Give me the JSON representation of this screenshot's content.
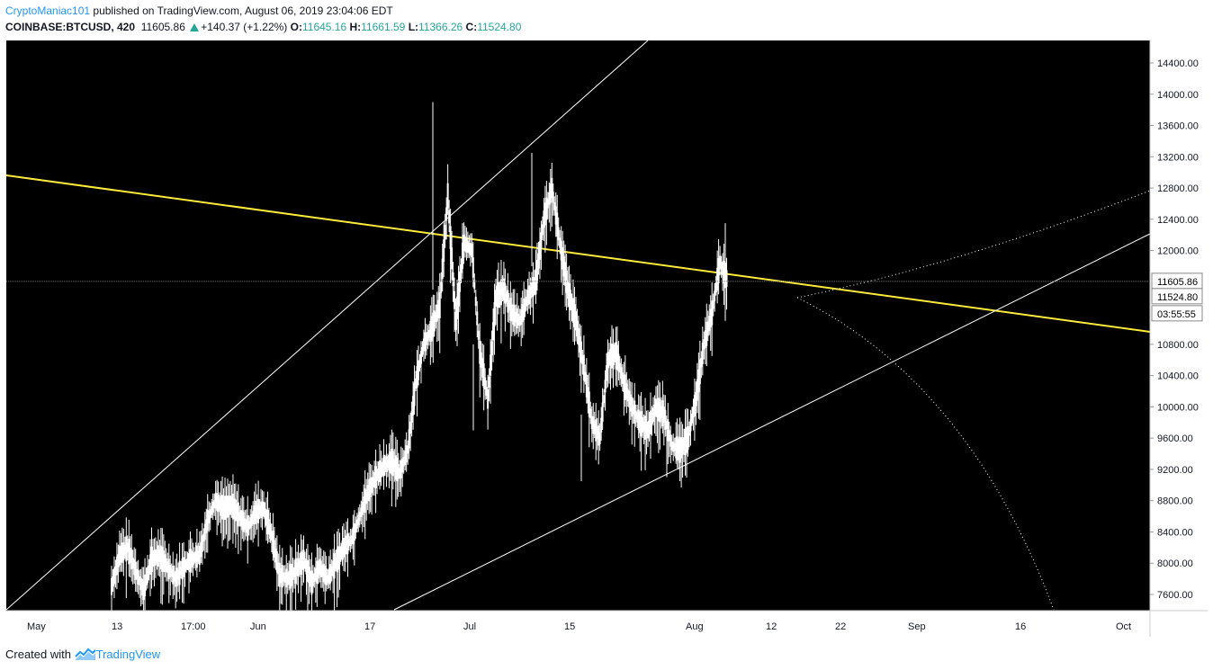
{
  "header": {
    "author": "CryptoManiac101",
    "published_text": " published on TradingView.com, August 06, 2019 23:04:06 EDT",
    "symbol": "COINBASE:BTCUSD, 420",
    "last": "11605.86",
    "change": "+140.37 (+1.22%)",
    "o_label": "O:",
    "o_value": "11645.16",
    "h_label": "H:",
    "h_value": "11661.59",
    "l_label": "L:",
    "l_value": "11366.26",
    "c_label": "C:",
    "c_value": "11524.80"
  },
  "price_axis": {
    "ticks": [
      "14400.00",
      "14000.00",
      "13600.00",
      "13200.00",
      "12800.00",
      "12400.00",
      "12000.00",
      "10800.00",
      "10400.00",
      "10000.00",
      "9600.00",
      "9200.00",
      "8800.00",
      "8400.00",
      "8000.00",
      "7600.00"
    ],
    "price_tag": "11605.86",
    "close_tag": "11524.80",
    "countdown": "03:55:55"
  },
  "time_axis": {
    "labels": [
      "May",
      "13",
      "17:00",
      "Jun",
      "17",
      "Jul",
      "15",
      "Aug",
      "12",
      "22",
      "Sep",
      "16",
      "Oct"
    ]
  },
  "colors": {
    "background": "#000000",
    "candles": "#ffffff",
    "trendline_yellow": "#ffeb3b",
    "up": "#26a69a",
    "link": "#2196f3"
  },
  "footer": {
    "created_with": "Created with",
    "brand": "TradingView"
  },
  "chart_data": {
    "type": "candlestick",
    "title": "COINBASE:BTCUSD, 420",
    "ylim": [
      7500,
      14800
    ],
    "close_series": [
      [
        5,
        7700
      ],
      [
        6,
        8100
      ],
      [
        7,
        8200
      ],
      [
        8,
        7900
      ],
      [
        9,
        7650
      ],
      [
        10,
        8050
      ],
      [
        11,
        8100
      ],
      [
        12,
        7950
      ],
      [
        13,
        7800
      ],
      [
        14,
        7950
      ],
      [
        15,
        8050
      ],
      [
        16,
        8100
      ],
      [
        17,
        8550
      ],
      [
        18,
        8800
      ],
      [
        19,
        8700
      ],
      [
        20,
        8750
      ],
      [
        21,
        8600
      ],
      [
        22,
        8450
      ],
      [
        23,
        8650
      ],
      [
        24,
        8700
      ],
      [
        25,
        8350
      ],
      [
        26,
        7850
      ],
      [
        27,
        7800
      ],
      [
        28,
        7900
      ],
      [
        29,
        8050
      ],
      [
        30,
        7750
      ],
      [
        31,
        7950
      ],
      [
        32,
        7800
      ],
      [
        33,
        8000
      ],
      [
        34,
        8200
      ],
      [
        35,
        8300
      ],
      [
        36,
        8600
      ],
      [
        37,
        8900
      ],
      [
        38,
        9100
      ],
      [
        39,
        9250
      ],
      [
        40,
        9300
      ],
      [
        41,
        9150
      ],
      [
        42,
        9450
      ],
      [
        43,
        10300
      ],
      [
        44,
        10800
      ],
      [
        45,
        11000
      ],
      [
        46,
        11300
      ],
      [
        47,
        12700
      ],
      [
        48,
        11100
      ],
      [
        49,
        12100
      ],
      [
        50,
        12000
      ],
      [
        51,
        10700
      ],
      [
        52,
        10100
      ],
      [
        53,
        11400
      ],
      [
        54,
        11500
      ],
      [
        55,
        11200
      ],
      [
        56,
        11100
      ],
      [
        57,
        11400
      ],
      [
        58,
        11600
      ],
      [
        59,
        12400
      ],
      [
        60,
        12800
      ],
      [
        61,
        12100
      ],
      [
        62,
        11500
      ],
      [
        63,
        11100
      ],
      [
        64,
        10500
      ],
      [
        65,
        9800
      ],
      [
        66,
        9600
      ],
      [
        67,
        10600
      ],
      [
        68,
        10700
      ],
      [
        69,
        10300
      ],
      [
        70,
        10000
      ],
      [
        71,
        9800
      ],
      [
        72,
        9700
      ],
      [
        73,
        10000
      ],
      [
        74,
        9900
      ],
      [
        75,
        9500
      ],
      [
        76,
        9450
      ],
      [
        77,
        9600
      ],
      [
        78,
        10100
      ],
      [
        79,
        10800
      ],
      [
        80,
        11200
      ],
      [
        81,
        11850
      ],
      [
        82,
        11600
      ]
    ]
  }
}
